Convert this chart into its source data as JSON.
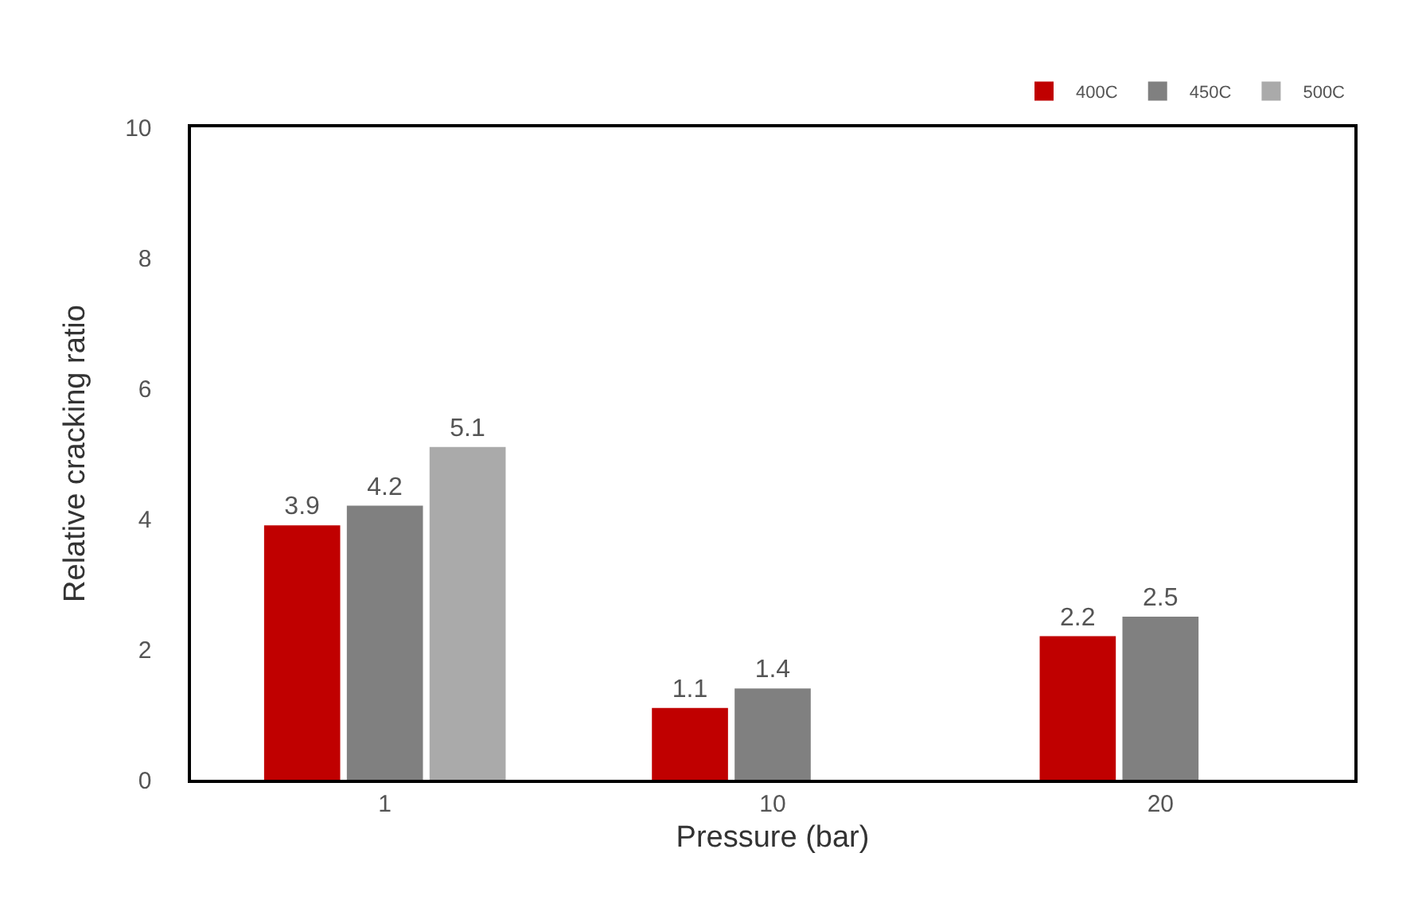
{
  "chart_data": {
    "type": "bar",
    "xlabel": "Pressure (bar)",
    "ylabel": "Relative cracking ratio",
    "categories": [
      "1",
      "10",
      "20"
    ],
    "series": [
      {
        "name": "400C",
        "color": "#c00000",
        "values": [
          3.9,
          1.1,
          2.2
        ]
      },
      {
        "name": "450C",
        "color": "#808080",
        "values": [
          4.2,
          1.4,
          2.5
        ]
      },
      {
        "name": "500C",
        "color": "#aaaaaa",
        "values": [
          5.1,
          null,
          null
        ]
      }
    ],
    "ylim": [
      0,
      10
    ],
    "yticks": [
      0,
      2,
      4,
      6,
      8,
      10
    ],
    "grid": false,
    "legend": "top right",
    "data_labels": true
  }
}
